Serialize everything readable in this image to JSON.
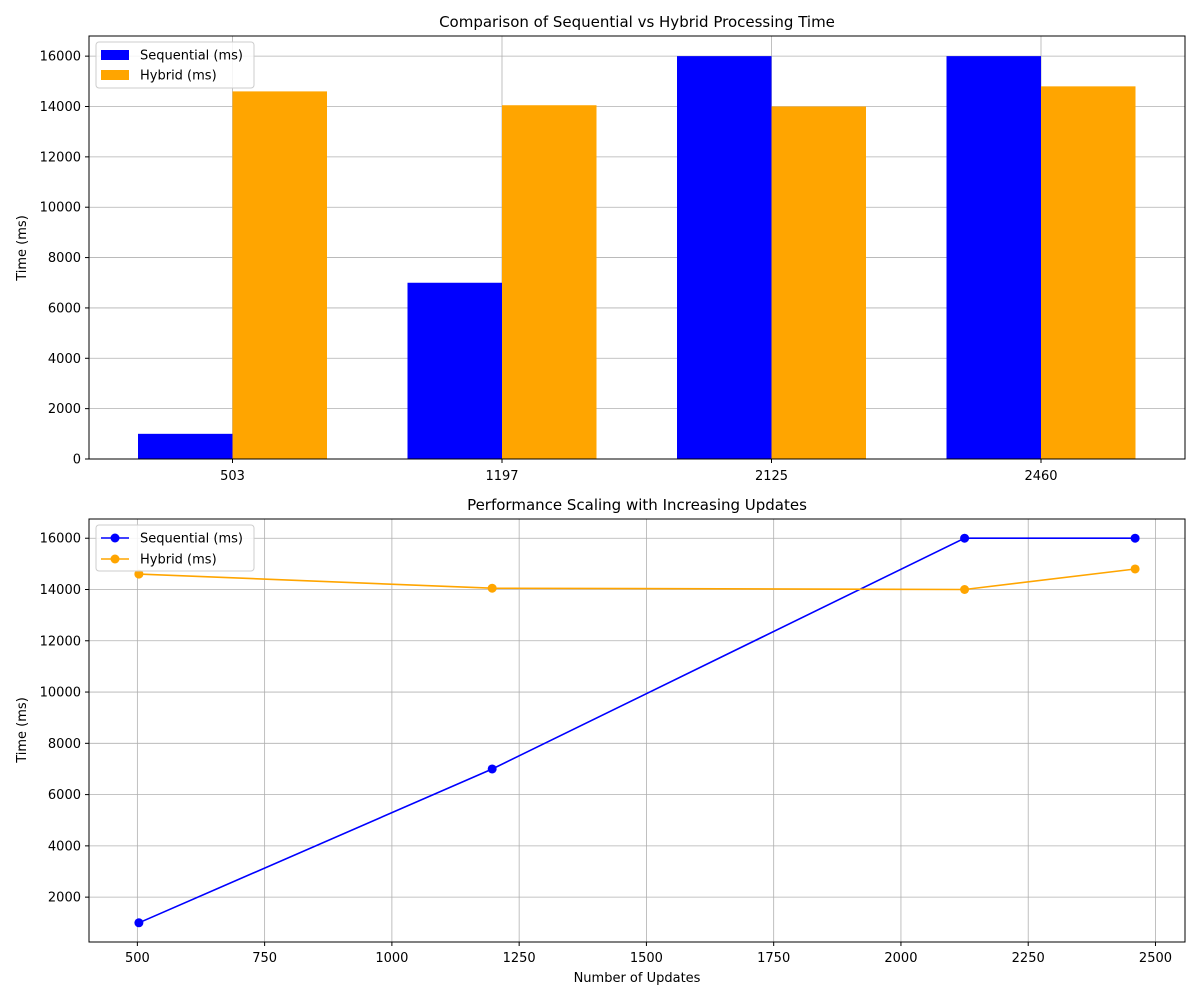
{
  "chart_data": [
    {
      "type": "bar",
      "title": "Comparison of Sequential vs Hybrid Processing Time",
      "xlabel": "",
      "ylabel": "Time (ms)",
      "categories": [
        "503",
        "1197",
        "2125",
        "2460"
      ],
      "series": [
        {
          "name": "Sequential (ms)",
          "color": "#0000ff",
          "values": [
            1000,
            7000,
            16000,
            16000
          ]
        },
        {
          "name": "Hybrid (ms)",
          "color": "#ffa500",
          "values": [
            14600,
            14050,
            14000,
            14800
          ]
        }
      ],
      "ylim": [
        0,
        16800
      ],
      "yticks": [
        0,
        2000,
        4000,
        6000,
        8000,
        10000,
        12000,
        14000,
        16000
      ],
      "grid": true,
      "legend": "top-left"
    },
    {
      "type": "line",
      "title": "Performance Scaling with Increasing Updates",
      "xlabel": "Number of Updates",
      "ylabel": "Time (ms)",
      "x": [
        503,
        1197,
        2125,
        2460
      ],
      "series": [
        {
          "name": "Sequential (ms)",
          "color": "#0000ff",
          "values": [
            1000,
            7000,
            16000,
            16000
          ]
        },
        {
          "name": "Hybrid (ms)",
          "color": "#ffa500",
          "values": [
            14600,
            14050,
            14000,
            14800
          ]
        }
      ],
      "xlim": [
        405,
        2558
      ],
      "ylim": [
        250,
        16750
      ],
      "xticks": [
        500,
        750,
        1000,
        1250,
        1500,
        1750,
        2000,
        2250,
        2500
      ],
      "yticks": [
        2000,
        4000,
        6000,
        8000,
        10000,
        12000,
        14000,
        16000
      ],
      "grid": true,
      "legend": "top-left"
    }
  ]
}
